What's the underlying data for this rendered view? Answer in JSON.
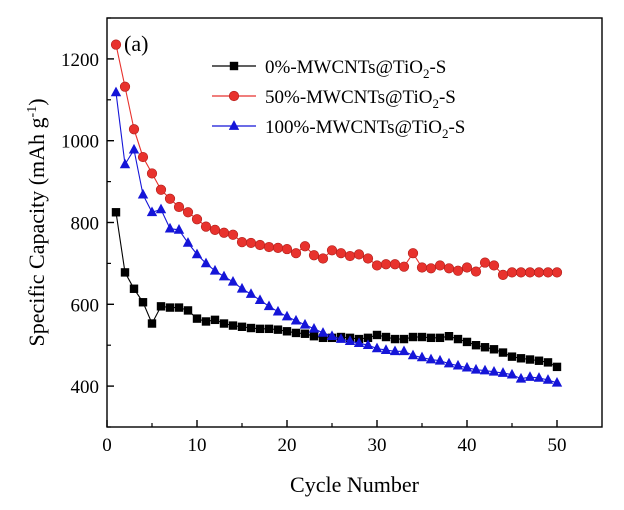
{
  "chart_data": {
    "type": "line",
    "panel_label": "(a)",
    "xlabel": "Cycle Number",
    "ylabel": {
      "main": "Specific Capacity (mAh g",
      "sup": "-1",
      "close": ")"
    },
    "xlim": [
      0,
      55
    ],
    "ylim": [
      300,
      1300
    ],
    "xticks": [
      0,
      10,
      20,
      30,
      40,
      50
    ],
    "yticks": [
      400,
      600,
      800,
      1000,
      1200
    ],
    "grid": false,
    "legend_position": "top-right",
    "series": [
      {
        "name": "0%-MWCNTs@TiO2-S",
        "legend": {
          "pre": "0%-MWCNTs@TiO",
          "sub": "2",
          "post": "-S"
        },
        "color": "#000000",
        "marker": "square",
        "x": [
          1,
          2,
          3,
          4,
          5,
          6,
          7,
          8,
          9,
          10,
          11,
          12,
          13,
          14,
          15,
          16,
          17,
          18,
          19,
          20,
          21,
          22,
          23,
          24,
          25,
          26,
          27,
          28,
          29,
          30,
          31,
          32,
          33,
          34,
          35,
          36,
          37,
          38,
          39,
          40,
          41,
          42,
          43,
          44,
          45,
          46,
          47,
          48,
          49,
          50
        ],
        "y": [
          825,
          678,
          638,
          605,
          553,
          595,
          592,
          592,
          585,
          565,
          558,
          562,
          553,
          548,
          545,
          542,
          540,
          540,
          538,
          534,
          530,
          528,
          522,
          518,
          518,
          520,
          518,
          515,
          518,
          525,
          520,
          515,
          515,
          520,
          520,
          518,
          518,
          522,
          515,
          508,
          500,
          495,
          490,
          482,
          472,
          468,
          465,
          462,
          458,
          447
        ]
      },
      {
        "name": "50%-MWCNTs@TiO2-S",
        "legend": {
          "pre": "50%-MWCNTs@TiO",
          "sub": "2",
          "post": "-S"
        },
        "color": "#e8322d",
        "marker": "circle",
        "x": [
          1,
          2,
          3,
          4,
          5,
          6,
          7,
          8,
          9,
          10,
          11,
          12,
          13,
          14,
          15,
          16,
          17,
          18,
          19,
          20,
          21,
          22,
          23,
          24,
          25,
          26,
          27,
          28,
          29,
          30,
          31,
          32,
          33,
          34,
          35,
          36,
          37,
          38,
          39,
          40,
          41,
          42,
          43,
          44,
          45,
          46,
          47,
          48,
          49,
          50
        ],
        "y": [
          1235,
          1132,
          1028,
          960,
          920,
          880,
          858,
          838,
          825,
          808,
          790,
          782,
          775,
          770,
          752,
          750,
          745,
          740,
          738,
          735,
          725,
          742,
          720,
          712,
          732,
          725,
          718,
          722,
          712,
          695,
          698,
          698,
          692,
          725,
          690,
          688,
          695,
          688,
          682,
          690,
          680,
          702,
          695,
          672,
          678,
          678,
          678,
          678,
          678,
          678
        ]
      },
      {
        "name": "100%-MWCNTs@TiO2-S",
        "legend": {
          "pre": "100%-MWCNTs@TiO",
          "sub": "2",
          "post": "-S"
        },
        "color": "#1515d8",
        "marker": "triangle",
        "x": [
          1,
          2,
          3,
          4,
          5,
          6,
          7,
          8,
          9,
          10,
          11,
          12,
          13,
          14,
          15,
          16,
          17,
          18,
          19,
          20,
          21,
          22,
          23,
          24,
          25,
          26,
          27,
          28,
          29,
          30,
          31,
          32,
          33,
          34,
          35,
          36,
          37,
          38,
          39,
          40,
          41,
          42,
          43,
          44,
          45,
          46,
          47,
          48,
          49,
          50
        ],
        "y": [
          1118,
          942,
          978,
          868,
          825,
          832,
          785,
          782,
          750,
          722,
          700,
          682,
          668,
          655,
          638,
          625,
          610,
          595,
          582,
          570,
          560,
          550,
          540,
          530,
          522,
          515,
          510,
          505,
          500,
          492,
          488,
          485,
          485,
          475,
          470,
          465,
          462,
          455,
          450,
          445,
          440,
          438,
          435,
          432,
          428,
          418,
          422,
          420,
          415,
          408
        ]
      }
    ]
  }
}
